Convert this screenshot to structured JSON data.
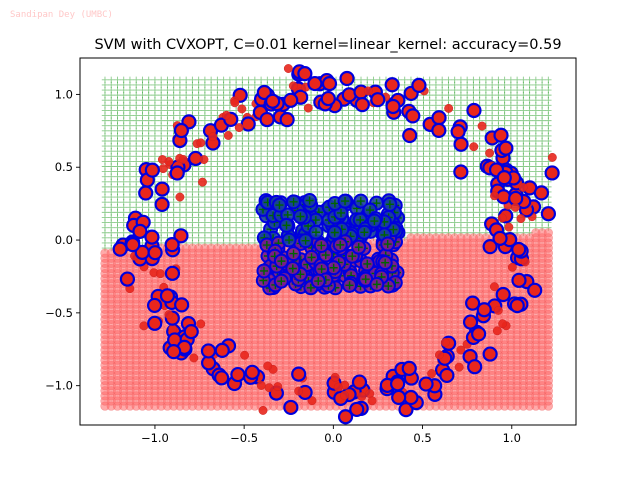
{
  "watermark": "Sandipan Dey (UMBC)",
  "chart_data": {
    "type": "scatter",
    "title": "SVM with CVXOPT, C=0.01 kernel=linear_kernel: accuracy=0.59",
    "xlabel": "",
    "ylabel": "",
    "xlim": [
      -1.42,
      1.36
    ],
    "ylim": [
      -1.27,
      1.25
    ],
    "xticks": [
      -1.0,
      -0.5,
      0.0,
      0.5,
      1.0
    ],
    "xtick_labels": [
      "−1.0",
      "−0.5",
      "0.0",
      "0.5",
      "1.0"
    ],
    "yticks": [
      -1.0,
      -0.5,
      0.0,
      0.5,
      1.0
    ],
    "ytick_labels": [
      "−1.0",
      "−0.5",
      "0.0",
      "0.5",
      "1.0"
    ],
    "grid": false,
    "decision_boundary": {
      "slope": 0.05,
      "intercept": -0.005
    },
    "background_grid": {
      "x_range": [
        -1.28,
        1.21
      ],
      "y_range": [
        -1.14,
        1.12
      ],
      "step": 0.035
    },
    "colors": {
      "positive_region": "#2ca02c",
      "negative_region": "#ff6464",
      "outer_point": "#e8261c",
      "inner_point_marker": "#006400",
      "support_vector_ring": "#0000dd",
      "inner_lower": "#7b1e8c"
    },
    "series": [
      {
        "kind": "outer_ring",
        "count": 320,
        "r_mean": 1.05,
        "r_sd": 0.085,
        "seed": 11
      },
      {
        "kind": "inner_cluster",
        "count": 250,
        "x_range": [
          -0.4,
          0.38
        ],
        "y_range": [
          -0.33,
          0.28
        ],
        "seed": 29
      }
    ]
  }
}
